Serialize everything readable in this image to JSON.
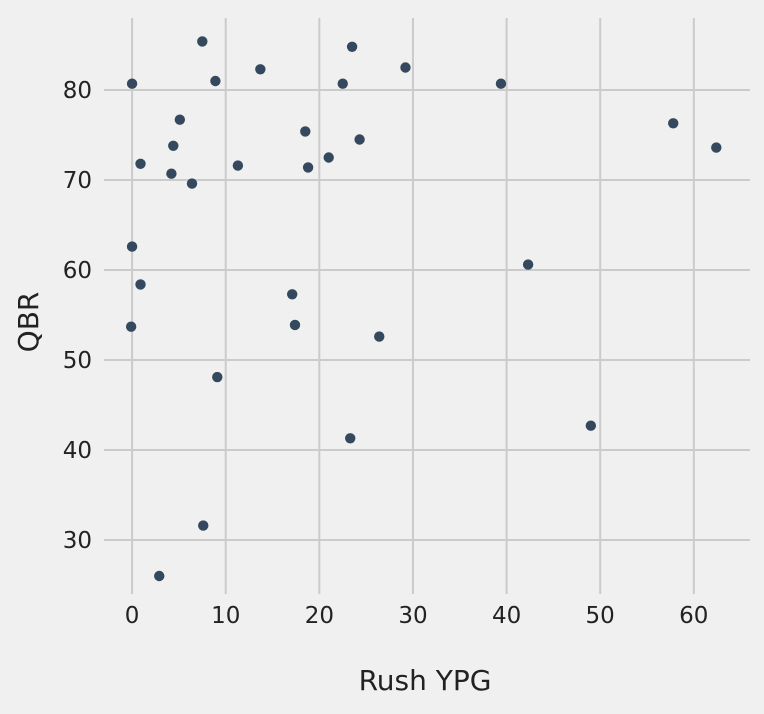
{
  "chart_data": {
    "type": "scatter",
    "title": "",
    "xlabel": "Rush YPG",
    "ylabel": "QBR",
    "xlim": [
      -3,
      66
    ],
    "ylim": [
      24,
      88
    ],
    "xticks": [
      0,
      10,
      20,
      30,
      40,
      50,
      60
    ],
    "yticks": [
      30,
      40,
      50,
      60,
      70,
      80
    ],
    "grid": true,
    "legend": "none",
    "colors": {
      "background": "#f0f0f0",
      "grid": "#cbcbcb",
      "point": "#34495e",
      "text": "#222222"
    },
    "series": [
      {
        "points": [
          {
            "x": 7.5,
            "y": 85.4
          },
          {
            "x": 23.5,
            "y": 84.8
          },
          {
            "x": 13.7,
            "y": 82.3
          },
          {
            "x": 29.2,
            "y": 82.5
          },
          {
            "x": 0.0,
            "y": 80.7
          },
          {
            "x": 8.9,
            "y": 81.0
          },
          {
            "x": 22.5,
            "y": 80.7
          },
          {
            "x": 39.4,
            "y": 80.7
          },
          {
            "x": 5.1,
            "y": 76.7
          },
          {
            "x": 57.8,
            "y": 76.3
          },
          {
            "x": 18.5,
            "y": 75.4
          },
          {
            "x": 24.3,
            "y": 74.5
          },
          {
            "x": 4.4,
            "y": 73.8
          },
          {
            "x": 62.4,
            "y": 73.6
          },
          {
            "x": 21.0,
            "y": 72.5
          },
          {
            "x": 0.9,
            "y": 71.8
          },
          {
            "x": 11.3,
            "y": 71.6
          },
          {
            "x": 18.8,
            "y": 71.4
          },
          {
            "x": 4.2,
            "y": 70.7
          },
          {
            "x": 6.4,
            "y": 69.6
          },
          {
            "x": 0.0,
            "y": 62.6
          },
          {
            "x": 42.3,
            "y": 60.6
          },
          {
            "x": 0.9,
            "y": 58.4
          },
          {
            "x": 17.1,
            "y": 57.3
          },
          {
            "x": -0.1,
            "y": 53.7
          },
          {
            "x": 17.4,
            "y": 53.9
          },
          {
            "x": 26.4,
            "y": 52.6
          },
          {
            "x": 9.1,
            "y": 48.1
          },
          {
            "x": 49.0,
            "y": 42.7
          },
          {
            "x": 23.3,
            "y": 41.3
          },
          {
            "x": 7.6,
            "y": 31.6
          },
          {
            "x": 2.9,
            "y": 26.0
          }
        ]
      }
    ]
  }
}
